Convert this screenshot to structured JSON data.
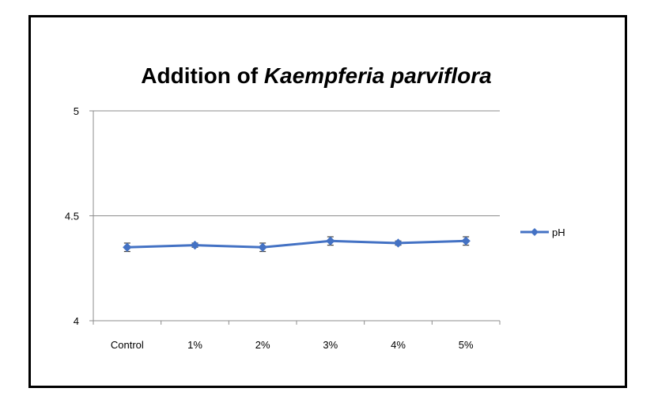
{
  "chart_data": {
    "type": "line",
    "title_prefix": "Addition of ",
    "title_italic": "Kaempferia parviflora",
    "xlabel": "",
    "ylabel": "",
    "categories": [
      "Control",
      "1%",
      "2%",
      "3%",
      "4%",
      "5%"
    ],
    "ylim": [
      4,
      5
    ],
    "yticks": [
      "4",
      "4.5",
      "5"
    ],
    "grid": true,
    "legend_position": "right",
    "series": [
      {
        "name": "pH",
        "color": "#4472C4",
        "marker": "diamond",
        "values": [
          4.35,
          4.36,
          4.35,
          4.38,
          4.37,
          4.38
        ],
        "errors": [
          0.02,
          0.01,
          0.02,
          0.02,
          0.01,
          0.02
        ]
      }
    ]
  }
}
